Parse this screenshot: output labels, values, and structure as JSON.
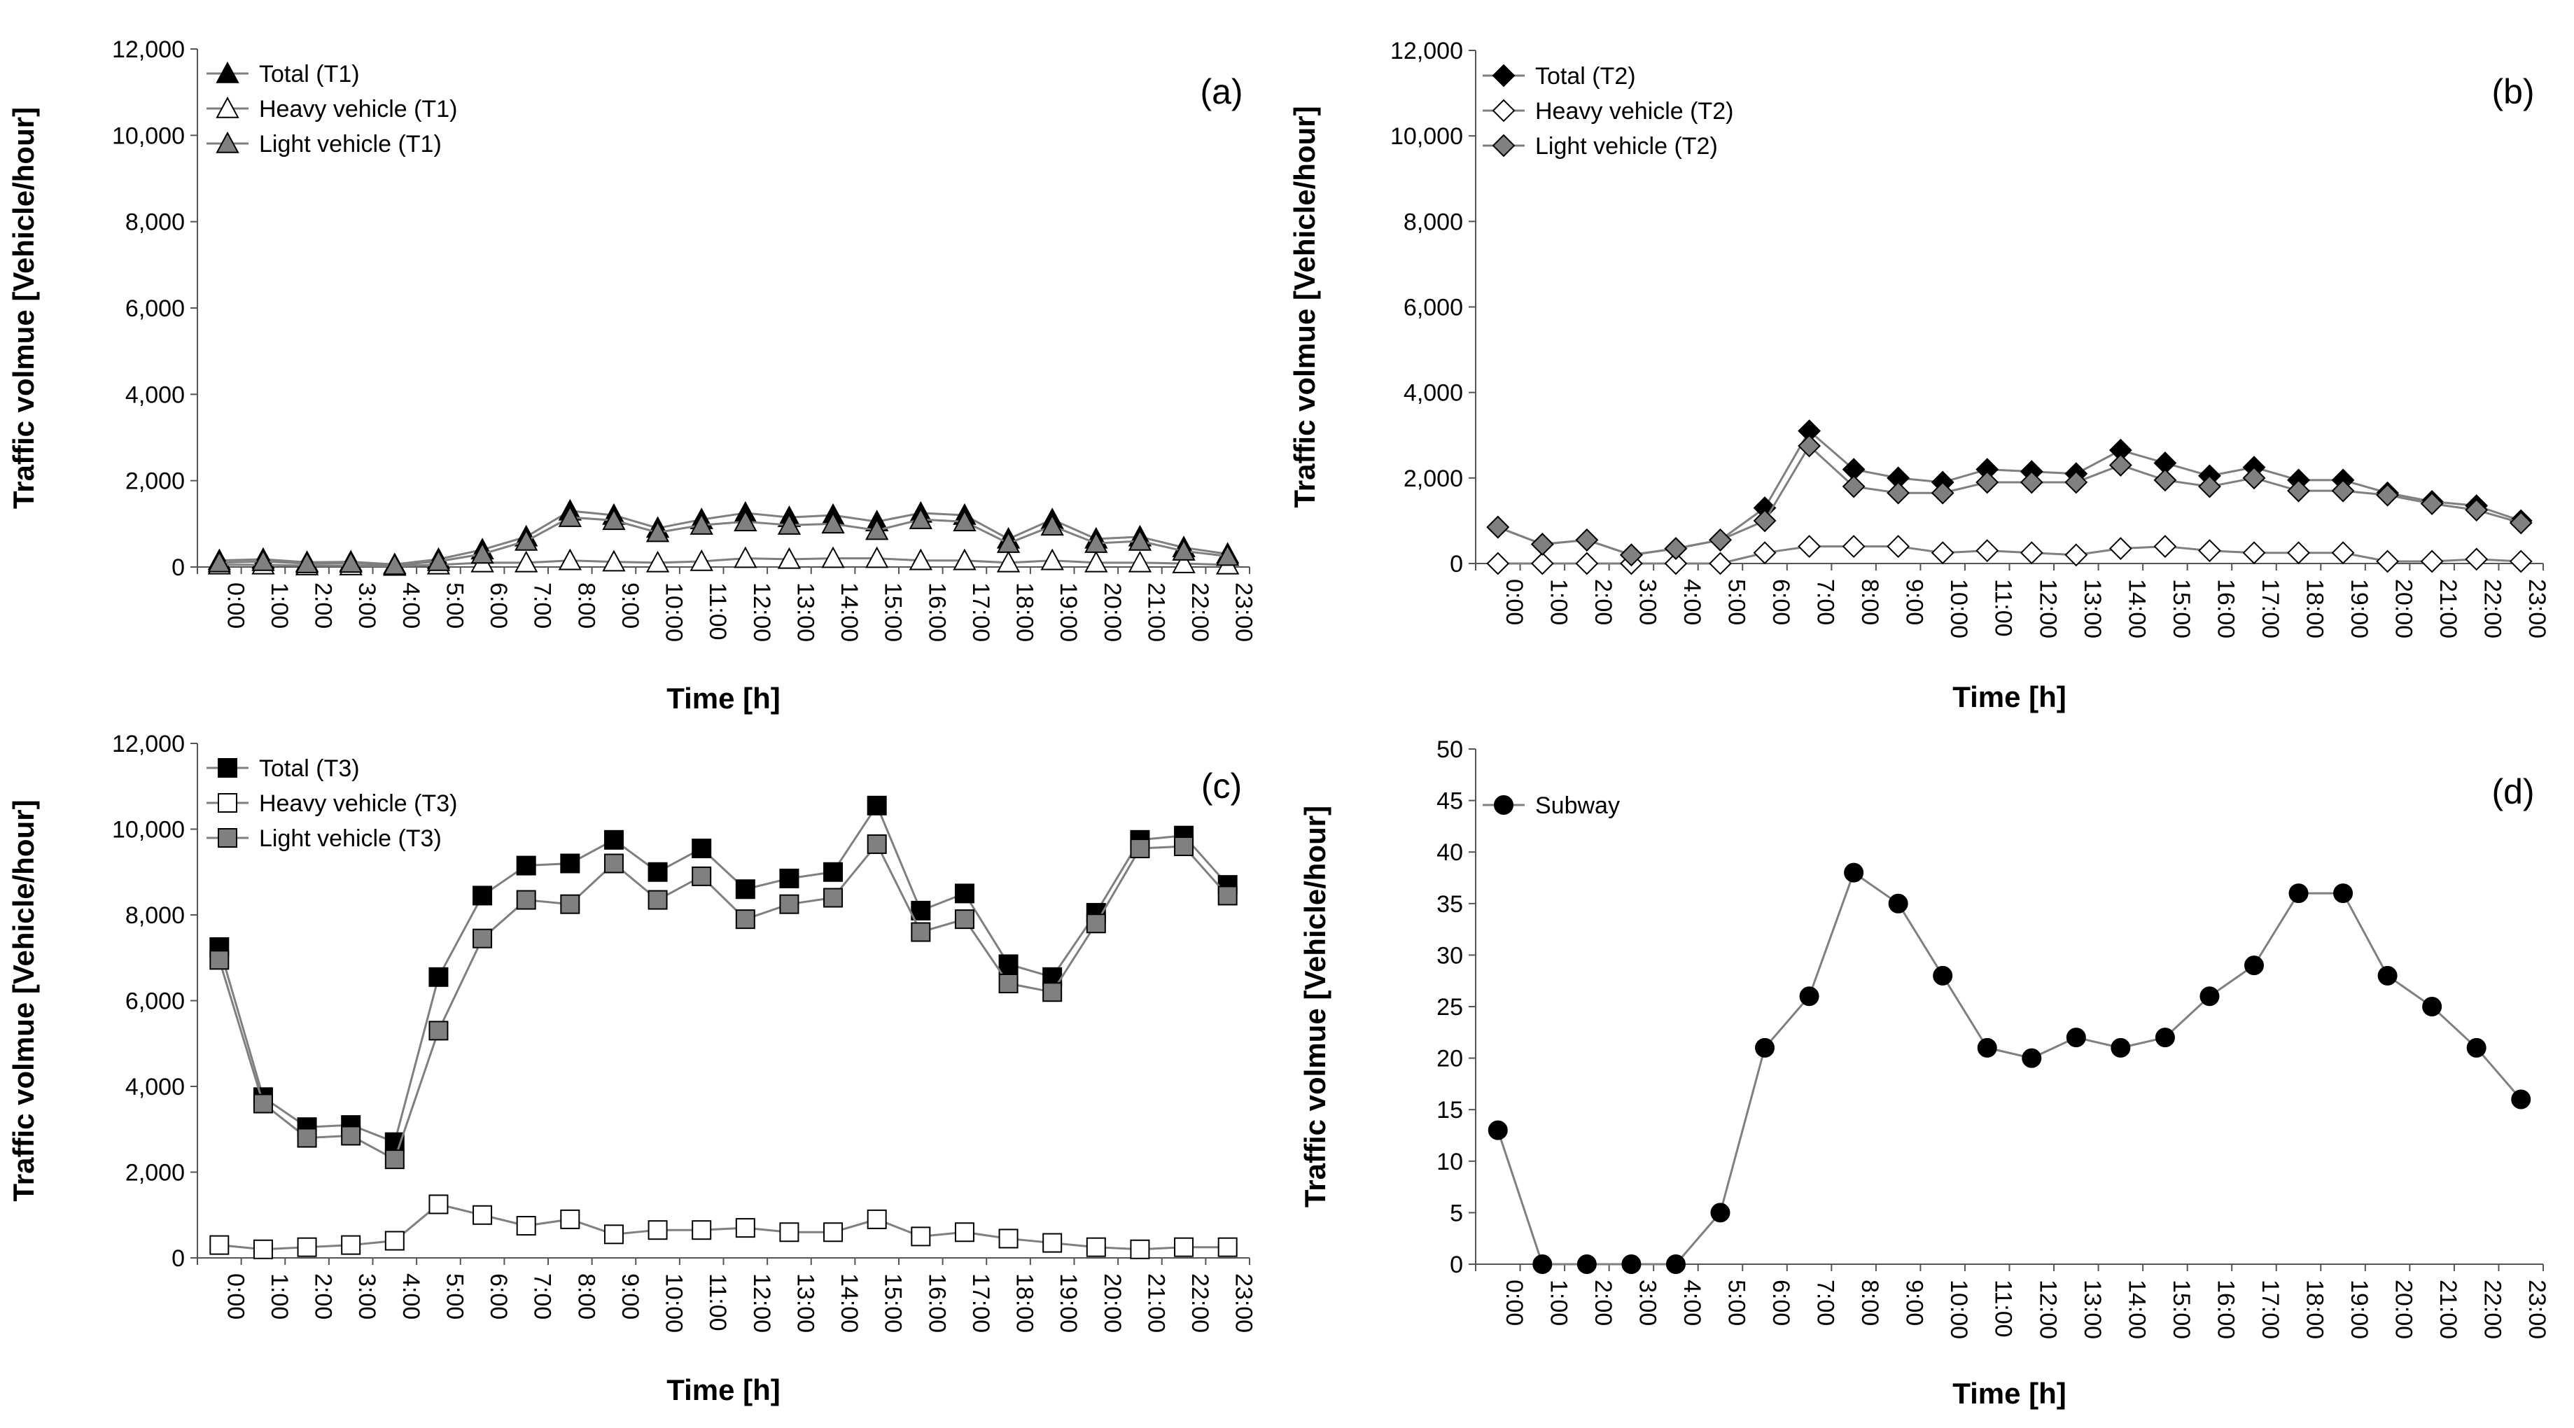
{
  "figure": {
    "style": {
      "line_color": "#7f7f7f",
      "black": "#000000",
      "white": "#ffffff",
      "gray_fill": "#808080"
    }
  },
  "chart_data": [
    {
      "id": "a",
      "panel_label": "(a)",
      "type": "line",
      "x": [
        "0:00",
        "1:00",
        "2:00",
        "3:00",
        "4:00",
        "5:00",
        "6:00",
        "7:00",
        "8:00",
        "9:00",
        "10:00",
        "11:00",
        "12:00",
        "13:00",
        "14:00",
        "15:00",
        "16:00",
        "17:00",
        "18:00",
        "19:00",
        "20:00",
        "21:00",
        "22:00",
        "23:00"
      ],
      "xlabel": "Time [h]",
      "ylabel": "Traffic volmue [Vehicle/hour]",
      "ylim": [
        0,
        12000
      ],
      "yticks": [
        0,
        2000,
        4000,
        6000,
        8000,
        10000,
        12000
      ],
      "ytick_labels": [
        "0",
        "2,000",
        "4,000",
        "6,000",
        "8,000",
        "10,000",
        "12,000"
      ],
      "legend_position": "top-left",
      "series": [
        {
          "name": "Total (T1)",
          "marker": "triangle",
          "fill": "#000000",
          "values": [
            150,
            180,
            110,
            120,
            60,
            180,
            400,
            700,
            1300,
            1200,
            900,
            1100,
            1250,
            1150,
            1200,
            1050,
            1250,
            1200,
            650,
            1100,
            650,
            700,
            450,
            300
          ]
        },
        {
          "name": "Heavy vehicle (T1)",
          "marker": "triangle",
          "fill": "#ffffff",
          "values": [
            50,
            50,
            30,
            30,
            20,
            50,
            100,
            100,
            150,
            120,
            100,
            130,
            200,
            180,
            200,
            200,
            150,
            150,
            100,
            150,
            100,
            100,
            80,
            50
          ]
        },
        {
          "name": "Light vehicle (T1)",
          "marker": "triangle",
          "fill": "#808080",
          "values": [
            100,
            130,
            80,
            90,
            40,
            130,
            300,
            600,
            1150,
            1080,
            800,
            970,
            1050,
            970,
            1000,
            850,
            1100,
            1050,
            550,
            950,
            550,
            600,
            370,
            250
          ]
        }
      ]
    },
    {
      "id": "b",
      "panel_label": "(b)",
      "type": "line",
      "x": [
        "0:00",
        "1:00",
        "2:00",
        "3:00",
        "4:00",
        "5:00",
        "6:00",
        "7:00",
        "8:00",
        "9:00",
        "10:00",
        "11:00",
        "12:00",
        "13:00",
        "14:00",
        "15:00",
        "16:00",
        "17:00",
        "18:00",
        "19:00",
        "20:00",
        "21:00",
        "22:00",
        "23:00"
      ],
      "xlabel": "Time [h]",
      "ylabel": "Traffic volmue [Vehicle/hour]",
      "ylim": [
        0,
        12000
      ],
      "yticks": [
        0,
        2000,
        4000,
        6000,
        8000,
        10000,
        12000
      ],
      "ytick_labels": [
        "0",
        "2,000",
        "4,000",
        "6,000",
        "8,000",
        "10,000",
        "12,000"
      ],
      "legend_position": "top-left",
      "series": [
        {
          "name": "Total (T2)",
          "marker": "diamond",
          "fill": "#000000",
          "values": [
            850,
            450,
            550,
            200,
            350,
            550,
            1300,
            3100,
            2200,
            2000,
            1900,
            2200,
            2150,
            2100,
            2650,
            2350,
            2050,
            2250,
            1950,
            1950,
            1650,
            1450,
            1350,
            1000
          ]
        },
        {
          "name": "Heavy vehicle (T2)",
          "marker": "diamond",
          "fill": "#ffffff",
          "values": [
            0,
            0,
            0,
            0,
            0,
            0,
            250,
            400,
            400,
            400,
            250,
            300,
            250,
            200,
            350,
            400,
            300,
            250,
            250,
            250,
            50,
            50,
            100,
            50
          ]
        },
        {
          "name": "Light vehicle (T2)",
          "marker": "diamond",
          "fill": "#808080",
          "values": [
            850,
            450,
            550,
            200,
            350,
            550,
            1000,
            2750,
            1800,
            1650,
            1650,
            1900,
            1900,
            1900,
            2300,
            1950,
            1800,
            2000,
            1700,
            1700,
            1600,
            1400,
            1250,
            950
          ]
        }
      ]
    },
    {
      "id": "c",
      "panel_label": "(c)",
      "type": "line",
      "x": [
        "0:00",
        "1:00",
        "2:00",
        "3:00",
        "4:00",
        "5:00",
        "6:00",
        "7:00",
        "8:00",
        "9:00",
        "10:00",
        "11:00",
        "12:00",
        "13:00",
        "14:00",
        "15:00",
        "16:00",
        "17:00",
        "18:00",
        "19:00",
        "20:00",
        "21:00",
        "22:00",
        "23:00"
      ],
      "xlabel": "Time [h]",
      "ylabel": "Traffic volmue [Vehicle/hour]",
      "ylim": [
        0,
        12000
      ],
      "yticks": [
        0,
        2000,
        4000,
        6000,
        8000,
        10000,
        12000
      ],
      "ytick_labels": [
        "0",
        "2,000",
        "4,000",
        "6,000",
        "8,000",
        "10,000",
        "12,000"
      ],
      "legend_position": "top-left",
      "series": [
        {
          "name": "Total (T3)",
          "marker": "square",
          "fill": "#000000",
          "values": [
            7250,
            3750,
            3050,
            3100,
            2700,
            6550,
            8450,
            9150,
            9200,
            9750,
            9000,
            9550,
            8600,
            8850,
            9000,
            10550,
            8100,
            8500,
            6850,
            6550,
            8050,
            9750,
            9850,
            8700
          ]
        },
        {
          "name": "Heavy vehicle (T3)",
          "marker": "square",
          "fill": "#ffffff",
          "values": [
            300,
            200,
            250,
            300,
            400,
            1250,
            1000,
            750,
            900,
            550,
            650,
            650,
            700,
            600,
            600,
            900,
            500,
            600,
            450,
            350,
            250,
            200,
            250,
            250
          ]
        },
        {
          "name": "Light vehicle (T3)",
          "marker": "square",
          "fill": "#808080",
          "values": [
            6950,
            3600,
            2800,
            2850,
            2300,
            5300,
            7450,
            8350,
            8250,
            9200,
            8350,
            8900,
            7900,
            8250,
            8400,
            9650,
            7600,
            7900,
            6400,
            6200,
            7800,
            9550,
            9600,
            8450
          ]
        }
      ]
    },
    {
      "id": "d",
      "panel_label": "(d)",
      "type": "line",
      "x": [
        "0:00",
        "1:00",
        "2:00",
        "3:00",
        "4:00",
        "5:00",
        "6:00",
        "7:00",
        "8:00",
        "9:00",
        "10:00",
        "11:00",
        "12:00",
        "13:00",
        "14:00",
        "15:00",
        "16:00",
        "17:00",
        "18:00",
        "19:00",
        "20:00",
        "21:00",
        "22:00",
        "23:00"
      ],
      "xlabel": "Time [h]",
      "ylabel": "Traffic volmue [Vehicle/hour]",
      "ylim": [
        0,
        50
      ],
      "yticks": [
        0,
        5,
        10,
        15,
        20,
        25,
        30,
        35,
        40,
        45,
        50
      ],
      "ytick_labels": [
        "0",
        "5",
        "10",
        "15",
        "20",
        "25",
        "30",
        "35",
        "40",
        "45",
        "50"
      ],
      "legend_position": "top-left",
      "series": [
        {
          "name": "Subway",
          "marker": "circle",
          "fill": "#000000",
          "values": [
            13,
            0,
            0,
            0,
            0,
            5,
            21,
            26,
            38,
            35,
            28,
            21,
            20,
            22,
            21,
            22,
            26,
            29,
            36,
            36,
            28,
            25,
            21,
            16
          ]
        }
      ]
    }
  ]
}
